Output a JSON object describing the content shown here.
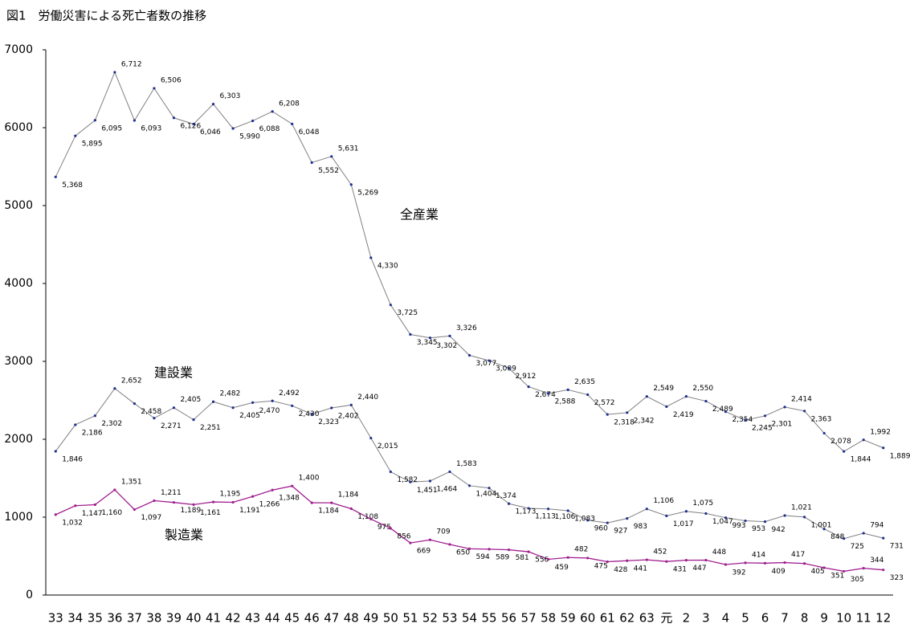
{
  "chart_data": {
    "type": "line",
    "title": "図1　労働災害による死亡者数の推移",
    "categories": [
      "33",
      "34",
      "35",
      "36",
      "37",
      "38",
      "39",
      "40",
      "41",
      "42",
      "43",
      "44",
      "45",
      "46",
      "47",
      "48",
      "49",
      "50",
      "51",
      "52",
      "53",
      "54",
      "55",
      "56",
      "57",
      "58",
      "59",
      "60",
      "61",
      "62",
      "63",
      "元",
      "2",
      "3",
      "4",
      "5",
      "6",
      "7",
      "8",
      "9",
      "10",
      "11",
      "12"
    ],
    "ylim": [
      0,
      7000
    ],
    "yticks": [
      0,
      1000,
      2000,
      3000,
      4000,
      5000,
      6000,
      7000
    ],
    "grid": false,
    "series": [
      {
        "name": "全産業",
        "color": "#808080",
        "marker_color": "#1f2f8f",
        "values": [
          5368,
          5895,
          6095,
          6712,
          6093,
          6506,
          6126,
          6046,
          6303,
          5990,
          6088,
          6208,
          6048,
          5552,
          5631,
          5269,
          4330,
          3725,
          3345,
          3302,
          3326,
          3077,
          3009,
          2912,
          2674,
          2588,
          2635,
          2572,
          2318,
          2342,
          2549,
          2419,
          2550,
          2489,
          2354,
          2245,
          2301,
          2414,
          2363,
          2078,
          1844,
          1992,
          1889
        ],
        "value_labels": [
          "5,368",
          "5,895",
          "6,095",
          "6,712",
          "6,093",
          "6,506",
          "6,126",
          "6,046",
          "6,303",
          "5,990",
          "6,088",
          "6,208",
          "6,048",
          "5,552",
          "5,631",
          "5,269",
          "4,330",
          "3,725",
          "3,345",
          "3,302",
          "3,326",
          "3,077",
          "3,009",
          "2,912",
          "2,674",
          "2,588",
          "2,635",
          "2,572",
          "2,318",
          "2,342",
          "2,549",
          "2,419",
          "2,550",
          "2,489",
          "2,354",
          "2,245",
          "2,301",
          "2,414",
          "2,363",
          "2,078",
          "1,844",
          "1,992",
          "1,889"
        ]
      },
      {
        "name": "建設業",
        "color": "#808080",
        "marker_color": "#1f2f8f",
        "values": [
          1846,
          2186,
          2302,
          2652,
          2458,
          2271,
          2405,
          2251,
          2482,
          2405,
          2470,
          2492,
          2430,
          2323,
          2402,
          2440,
          2015,
          1582,
          1451,
          1464,
          1583,
          1404,
          1374,
          1173,
          1113,
          1106,
          1083,
          960,
          927,
          983,
          1106,
          1017,
          1075,
          1047,
          993,
          953,
          942,
          1021,
          1001,
          848,
          725,
          794,
          731
        ],
        "value_labels": [
          "1,846",
          "2,186",
          "2,302",
          "2,652",
          "2,458",
          "2,271",
          "2,405",
          "2,251",
          "2,482",
          "2,405",
          "2,470",
          "2,492",
          "2,430",
          "2,323",
          "2,402",
          "2,440",
          "2,015",
          "1,582",
          "1,451",
          "1,464",
          "1,583",
          "1,404",
          "1,374",
          "1,173",
          "1,113",
          "1,106",
          "1,083",
          "960",
          "927",
          "983",
          "1,106",
          "1,017",
          "1,075",
          "1,047",
          "993",
          "953",
          "942",
          "1,021",
          "1,001",
          "848",
          "725",
          "794",
          "731"
        ]
      },
      {
        "name": "製造業",
        "color": "#a0208f",
        "marker_color": "#a0208f",
        "values": [
          1032,
          1147,
          1160,
          1351,
          1097,
          1211,
          1189,
          1161,
          1195,
          1191,
          1266,
          1348,
          1400,
          1184,
          1184,
          1108,
          975,
          856,
          669,
          709,
          650,
          594,
          589,
          581,
          556,
          459,
          482,
          475,
          428,
          441,
          452,
          431,
          447,
          448,
          392,
          414,
          409,
          417,
          405,
          351,
          305,
          344,
          323
        ],
        "value_labels": [
          "1,032",
          "1,147",
          "1,160",
          "1,351",
          "1,097",
          "1,211",
          "1,189",
          "1,161",
          "1,195",
          "1,191",
          "1,266",
          "1,348",
          "1,400",
          "1,184",
          "1,184",
          "1,108",
          "975",
          "856",
          "669",
          "709",
          "650",
          "594",
          "589",
          "581",
          "556",
          "459",
          "482",
          "475",
          "428",
          "441",
          "452",
          "431",
          "447",
          "448",
          "392",
          "414",
          "409",
          "417",
          "405",
          "351",
          "305",
          "344",
          "323"
        ]
      }
    ]
  }
}
